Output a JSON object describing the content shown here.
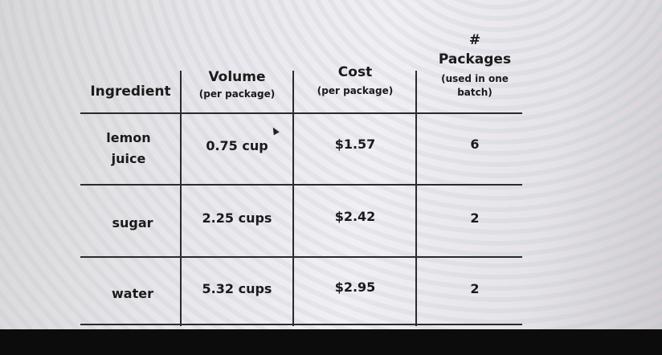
{
  "table": {
    "headers": [
      {
        "title": "Ingredient",
        "subtitle": ""
      },
      {
        "title": "Volume",
        "subtitle": "(per package)"
      },
      {
        "title": "Cost",
        "subtitle": "(per package)"
      },
      {
        "title": "# Packages",
        "subtitle": "(used in one batch)"
      }
    ],
    "header_last_line1": "#",
    "header_last_line2": "Packages",
    "header_last_sub1": "(used in one",
    "header_last_sub2": "batch)",
    "rows": [
      {
        "ingredient_line1": "lemon",
        "ingredient_line2": "juice",
        "volume": "0.75 cup",
        "cost": "$1.57",
        "packages": "6"
      },
      {
        "ingredient_line1": "sugar",
        "ingredient_line2": "",
        "volume": "2.25 cups",
        "cost": "$2.42",
        "packages": "2"
      },
      {
        "ingredient_line1": "water",
        "ingredient_line2": "",
        "volume": "5.32 cups",
        "cost": "$2.95",
        "packages": "2"
      }
    ]
  }
}
